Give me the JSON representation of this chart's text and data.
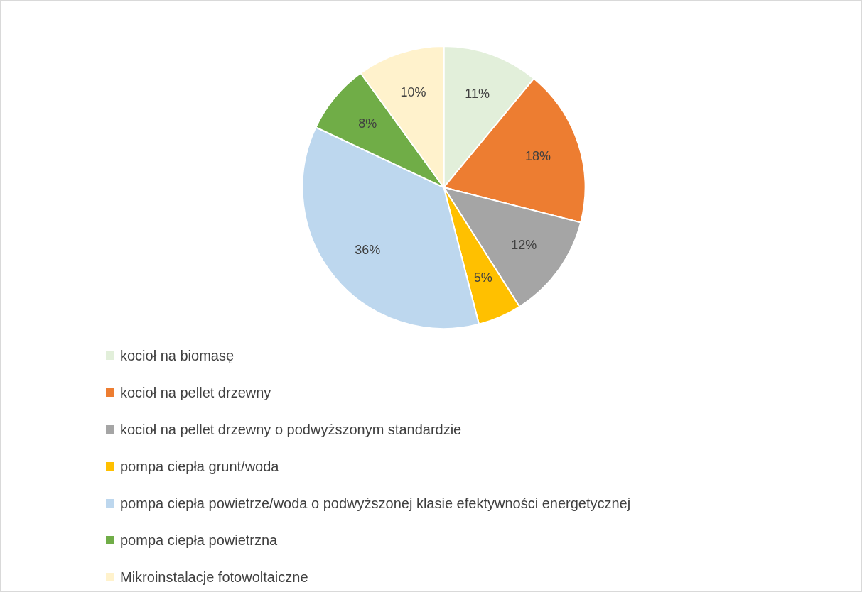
{
  "chart_data": {
    "type": "pie",
    "categories": [
      "kocioł na biomasę",
      "kocioł na pellet drzewny",
      "kocioł na pellet drzewny o podwyższonym standardzie",
      "pompa ciepła grunt/woda",
      "pompa ciepła powietrze/woda o podwyższonej klasie efektywności energetycznej",
      "pompa ciepła powietrzna",
      "Mikroinstalacje fotowoltaiczne"
    ],
    "values": [
      11,
      18,
      12,
      5,
      36,
      8,
      10
    ],
    "value_labels": [
      "11%",
      "18%",
      "12%",
      "5%",
      "36%",
      "8%",
      "10%"
    ],
    "colors": [
      "#e2efda",
      "#ed7d31",
      "#a5a5a5",
      "#ffc000",
      "#bdd7ee",
      "#70ad47",
      "#fff2cc"
    ],
    "legend": "bottom"
  }
}
